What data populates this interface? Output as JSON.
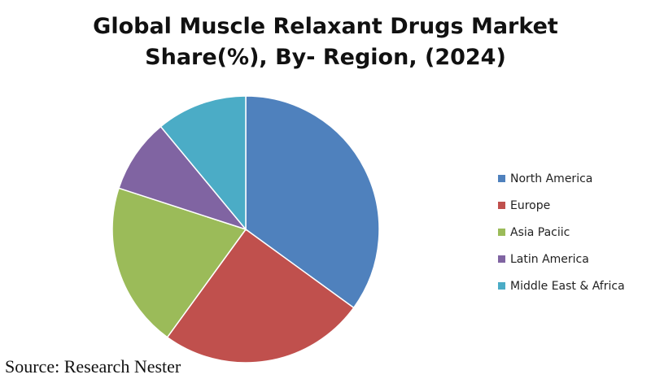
{
  "chart_data": {
    "type": "pie",
    "title_lines": [
      "Global Muscle Relaxant Drugs Market",
      "Share(%), By- Region, (2024)"
    ],
    "categories": [
      "North America",
      "Europe",
      "Asia Paciic",
      "Latin America",
      "Middle East & Africa"
    ],
    "values": [
      35,
      25,
      20,
      9,
      11
    ],
    "colors": [
      "#4f81bd",
      "#c0504d",
      "#9bbb59",
      "#8064a2",
      "#4bacc6"
    ],
    "start_angle_deg": 0,
    "direction": "clockwise",
    "legend_position": "right",
    "source": "Source: Research Nester"
  }
}
